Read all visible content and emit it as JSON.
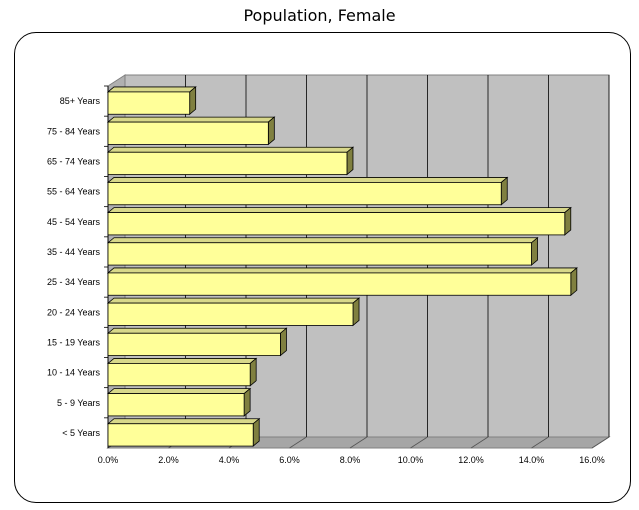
{
  "chart_data": {
    "type": "bar",
    "orientation": "horizontal",
    "title": "Population, Female",
    "xlabel": "",
    "ylabel": "",
    "categories": [
      "85+ Years",
      "75 - 84 Years",
      "65 - 74 Years",
      "55 - 64 Years",
      "45 - 54 Years",
      "35 - 44 Years",
      "25 - 34 Years",
      "20 - 24 Years",
      "15 - 19 Years",
      "10 - 14 Years",
      "5 - 9 Years",
      "< 5 Years"
    ],
    "values": [
      2.7,
      5.3,
      7.9,
      13.0,
      15.1,
      14.0,
      15.3,
      8.1,
      5.7,
      4.7,
      4.5,
      4.8
    ],
    "xlim": [
      0,
      16
    ],
    "xticks": [
      "0.0%",
      "2.0%",
      "4.0%",
      "6.0%",
      "8.0%",
      "10.0%",
      "12.0%",
      "14.0%",
      "16.0%"
    ],
    "xtick_values": [
      0,
      2,
      4,
      6,
      8,
      10,
      12,
      14,
      16
    ],
    "grid": true,
    "legend": "none",
    "colors": {
      "bar_front": "#ffff99",
      "bar_top": "#d8d88a",
      "bar_side": "#808040",
      "plot_bg": "#c0c0c0",
      "floor": "#a6a6a6",
      "gridline": "#000000"
    }
  }
}
